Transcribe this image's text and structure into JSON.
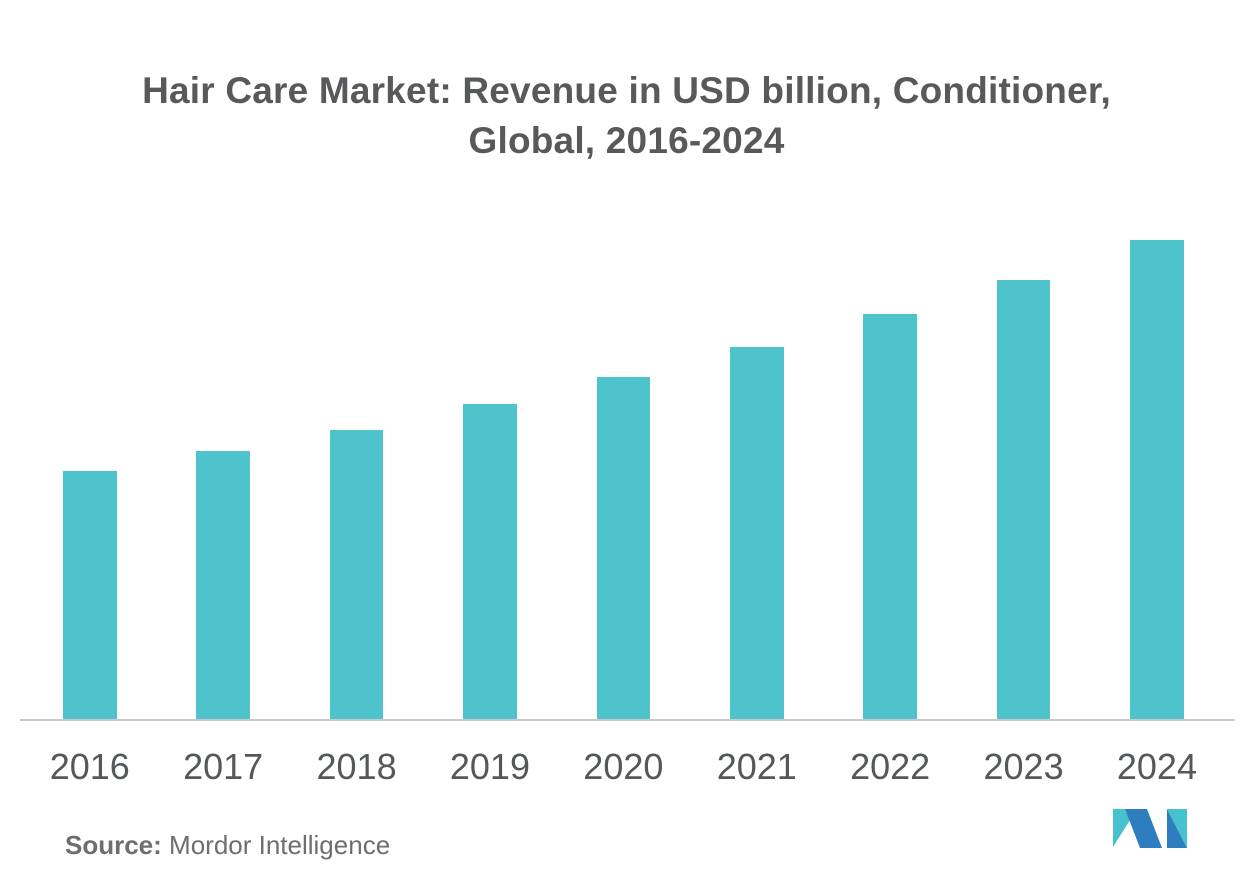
{
  "title": {
    "line1": "Hair Care Market: Revenue in USD billion, Conditioner,",
    "line2": "Global, 2016-2024",
    "color": "#58595B"
  },
  "chart_data": {
    "type": "bar",
    "title": "Hair Care Market: Revenue in USD billion, Conditioner, Global, 2016-2024",
    "categories": [
      "2016",
      "2017",
      "2018",
      "2019",
      "2020",
      "2021",
      "2022",
      "2023",
      "2024"
    ],
    "values": [
      51.9,
      56.0,
      60.4,
      65.8,
      71.5,
      77.7,
      84.6,
      91.7,
      100.0
    ],
    "values_note": "y-axis has no labels or gridlines in the figure; values are bar heights as percent of the tallest bar (2024 = 100)",
    "xlabel": "",
    "ylabel": "",
    "ylim": [
      0,
      100
    ],
    "grid": false,
    "legend": false,
    "bar_color": "#4EC3CC",
    "axis_line_color": "#C8C9CA",
    "tick_label_color": "#55585B"
  },
  "source": {
    "label": "Source:",
    "name": " Mordor Intelligence",
    "color": "#6D6E70"
  },
  "logo": {
    "alt": "mordor-intelligence-logo",
    "blue": "#2E7DBE",
    "teal": "#45C2CD"
  }
}
